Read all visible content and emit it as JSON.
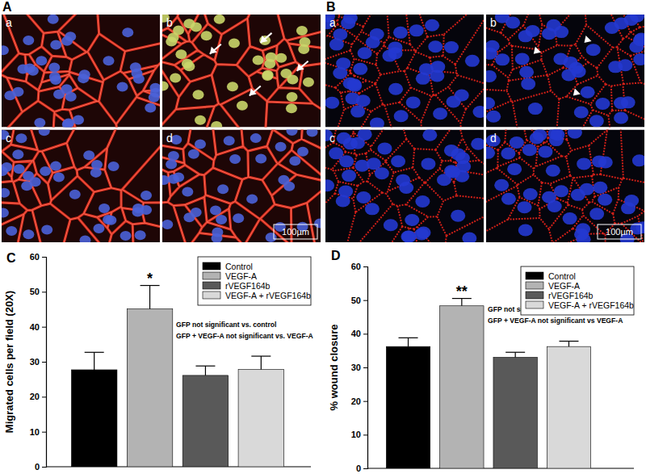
{
  "chart_data": [
    {
      "type": "bar",
      "title": "C",
      "y_label": "Migrated cells per field (20X)",
      "categories": [
        "Control",
        "VEGF-A",
        "rVEGF164b",
        "VEGF-A + rVEGF164b"
      ],
      "values": [
        27.7,
        45.1,
        26.1,
        27.8
      ],
      "errors": [
        5.0,
        6.7,
        2.7,
        3.8
      ],
      "colors": [
        "#000000",
        "#b3b3b3",
        "#595959",
        "#d9d9d9"
      ],
      "significance": [
        null,
        "*",
        null,
        null
      ],
      "annotations": [
        "GFP not significant vs. control",
        "GFP + VEGF-A not significant vs. VEGF-A"
      ],
      "ylim": [
        0,
        60
      ],
      "yticks": [
        0,
        10,
        20,
        30,
        40,
        50,
        60
      ],
      "legend": "top-right",
      "tick_labels": "y",
      "grid": false
    },
    {
      "type": "bar",
      "title": "D",
      "y_label": "% wound closure",
      "categories": [
        "Control",
        "VEGF-A",
        "rVEGF164b",
        "VEGF-A + rVEGF164b"
      ],
      "values": [
        36.2,
        48.3,
        33.0,
        36.2
      ],
      "errors": [
        2.6,
        2.2,
        1.5,
        1.6
      ],
      "colors": [
        "#000000",
        "#b3b3b3",
        "#595959",
        "#d9d9d9"
      ],
      "significance": [
        null,
        "**",
        null,
        null
      ],
      "annotations": [
        "GFP not significant vs. control",
        "GFP + VEGF-A not significant vs VEGF-A"
      ],
      "ylim": [
        0,
        60
      ],
      "yticks": [
        0,
        10,
        20,
        30,
        40,
        50,
        60
      ],
      "legend": "top-right",
      "tick_labels": "y",
      "grid": false
    }
  ],
  "image_panels": [
    {
      "label": "A",
      "subpanels": [
        "a",
        "b",
        "c",
        "d"
      ],
      "scale_bar": "100µm"
    },
    {
      "label": "B",
      "subpanels": [
        "a",
        "b",
        "c",
        "d"
      ],
      "scale_bar": "100µm"
    }
  ]
}
